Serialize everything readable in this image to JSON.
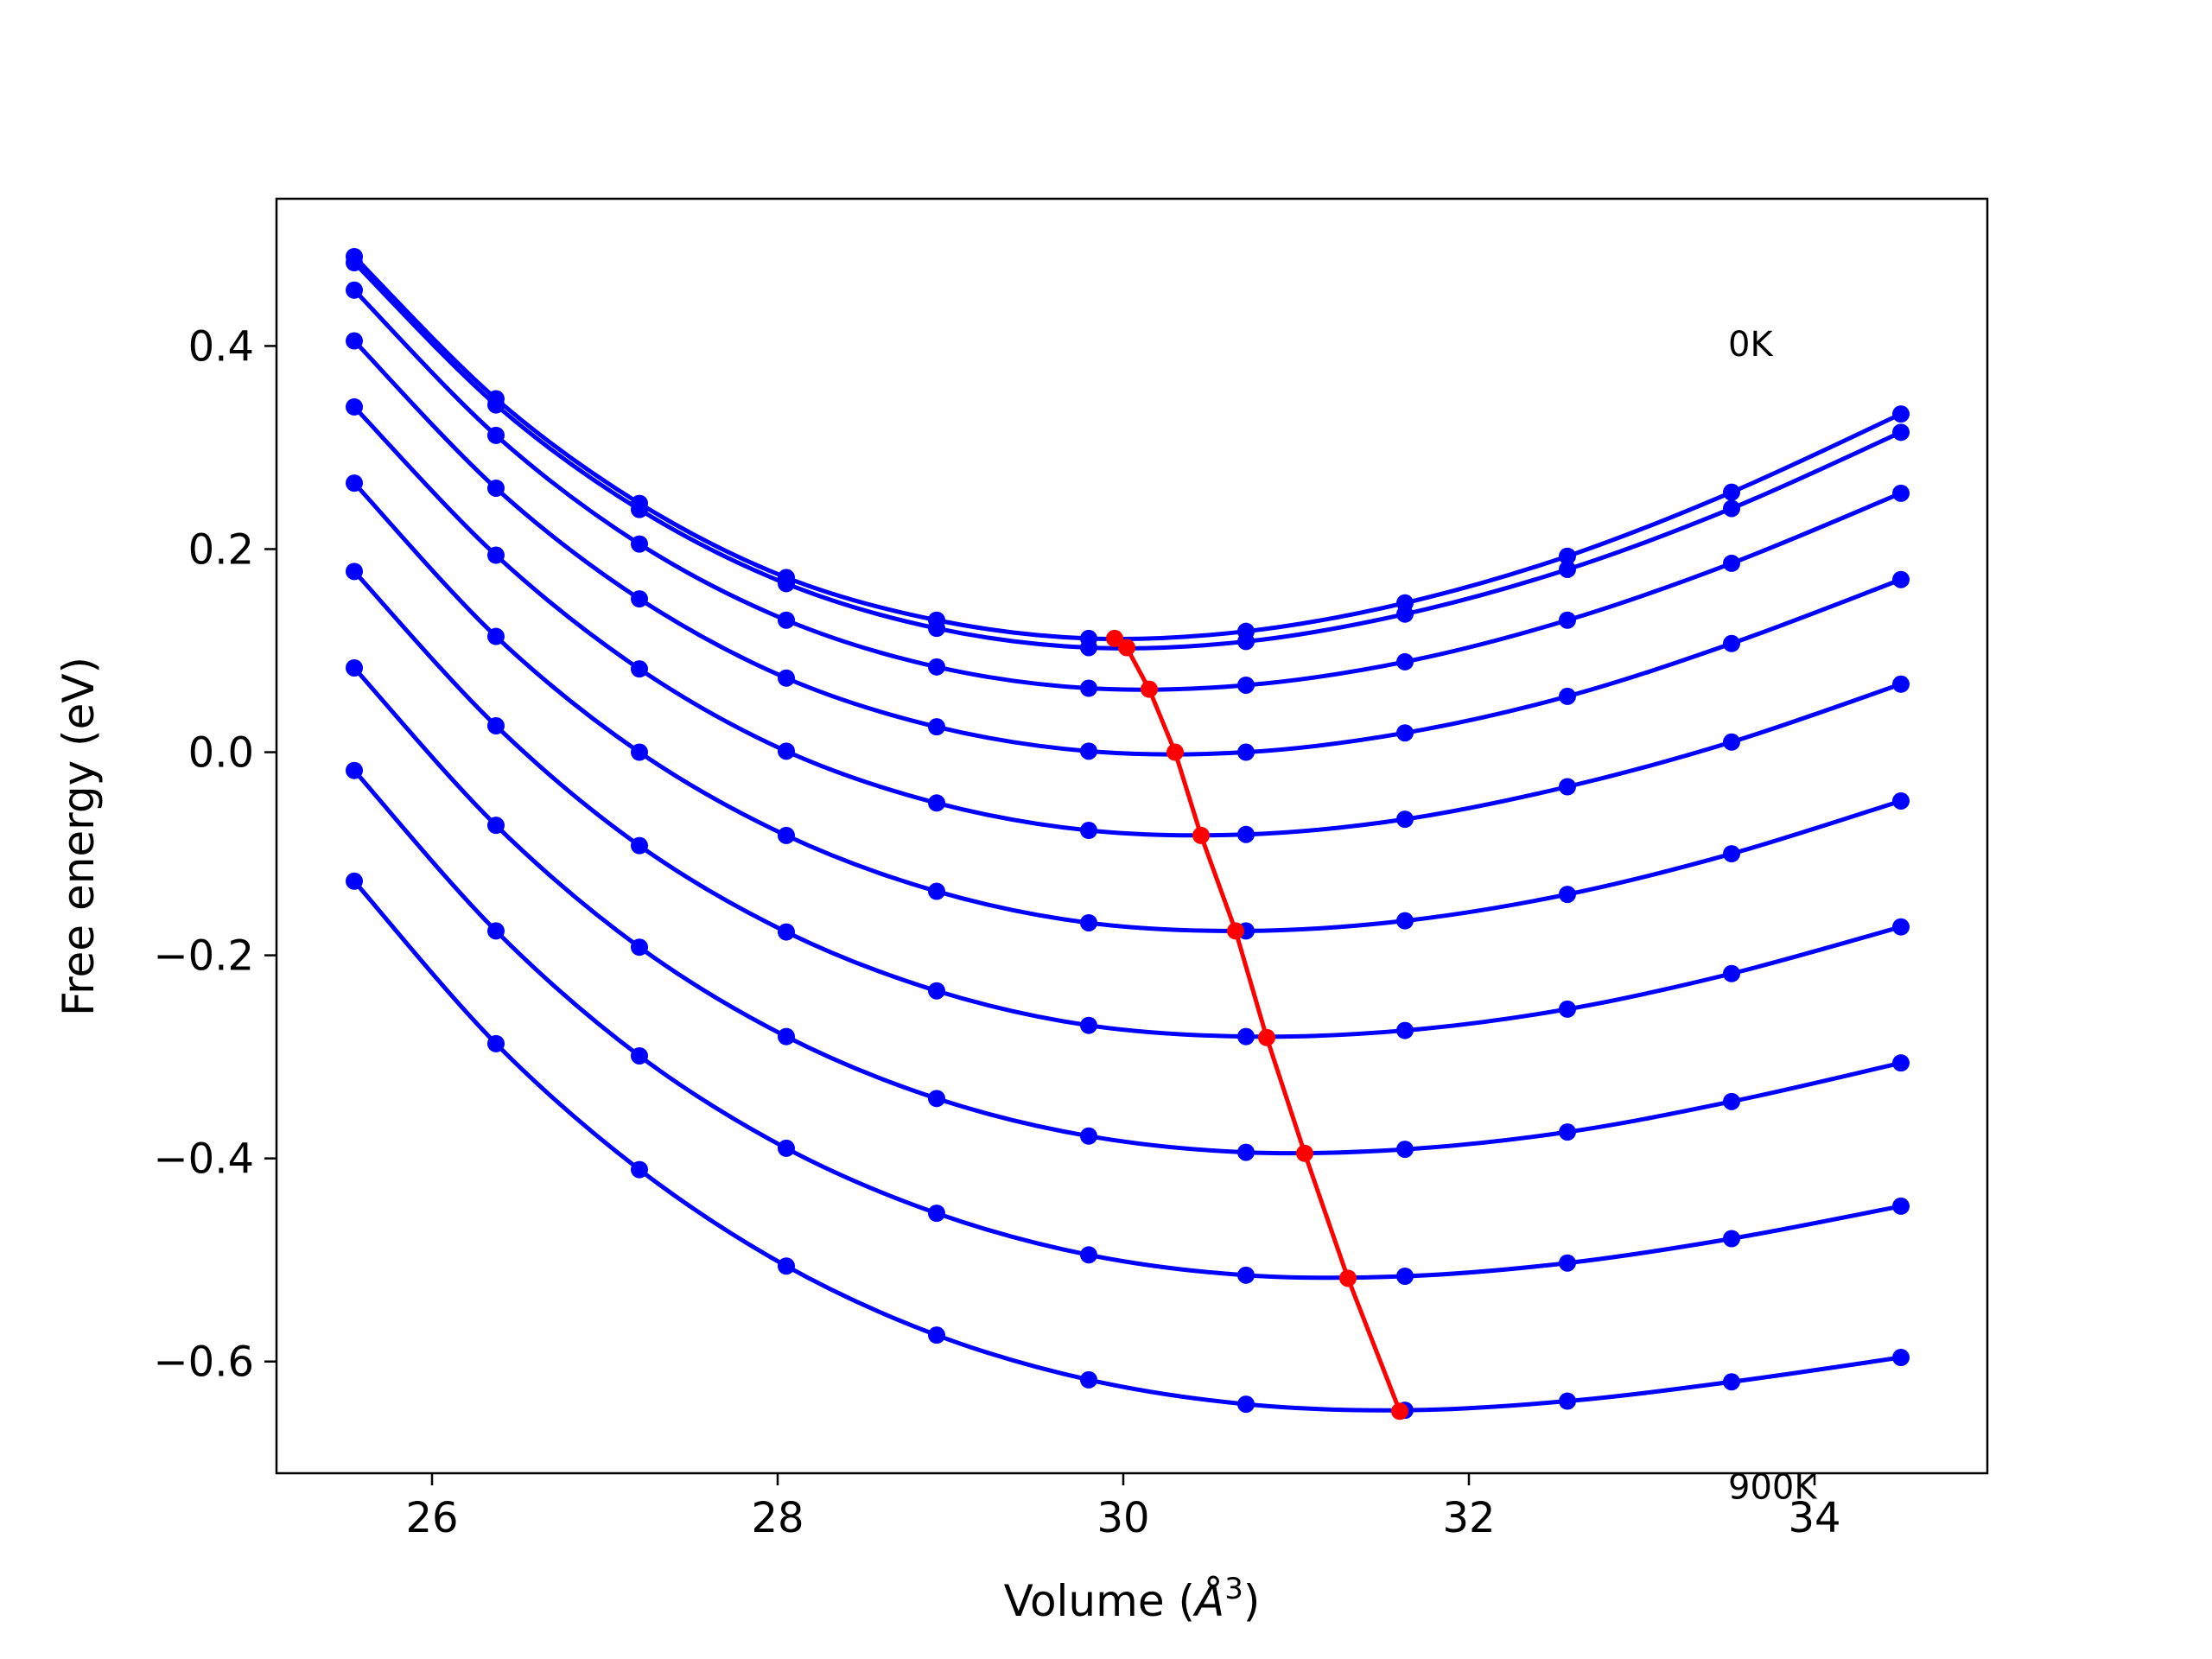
{
  "chart_data": {
    "type": "line",
    "title": "",
    "xlabel": "Volume (",
    "xlabel_unit_base": "Å",
    "xlabel_unit_exp": "3",
    "xlabel_close": ")",
    "ylabel": "Free energy (eV)",
    "xlim": [
      25.1,
      35.0
    ],
    "ylim": [
      -0.71,
      0.545
    ],
    "x_ticks": [
      26,
      28,
      30,
      32,
      34
    ],
    "x_tick_labels": [
      "26",
      "28",
      "30",
      "32",
      "34"
    ],
    "y_ticks": [
      0.4,
      0.2,
      0.0,
      -0.2,
      -0.4,
      -0.6
    ],
    "y_tick_labels": [
      "0.4",
      "0.2",
      "0.0",
      "−0.2",
      "−0.4",
      "−0.6"
    ],
    "grid": false,
    "annotations": [
      {
        "text": "0K",
        "x": 33.5,
        "y": 0.39
      },
      {
        "text": "900K",
        "x": 33.5,
        "y": -0.735
      }
    ],
    "volumes": [
      25.55,
      26.37,
      27.2,
      28.05,
      28.92,
      29.8,
      30.71,
      31.63,
      32.57,
      33.52,
      34.5
    ],
    "series": [
      {
        "color": "#0000ff",
        "values": [
          0.488,
          0.348,
          0.245,
          0.172,
          0.13,
          0.112,
          0.119,
          0.147,
          0.193,
          0.256,
          0.333
        ]
      },
      {
        "color": "#0000ff",
        "values": [
          0.482,
          0.342,
          0.239,
          0.166,
          0.122,
          0.103,
          0.109,
          0.136,
          0.18,
          0.24,
          0.315
        ]
      },
      {
        "color": "#0000ff",
        "values": [
          0.455,
          0.312,
          0.205,
          0.13,
          0.084,
          0.063,
          0.066,
          0.089,
          0.13,
          0.186,
          0.255
        ]
      },
      {
        "color": "#0000ff",
        "values": [
          0.405,
          0.26,
          0.151,
          0.073,
          0.025,
          0.001,
          0.0,
          0.019,
          0.055,
          0.107,
          0.17
        ]
      },
      {
        "color": "#0000ff",
        "values": [
          0.34,
          0.194,
          0.082,
          0.001,
          -0.05,
          -0.077,
          -0.081,
          -0.066,
          -0.034,
          0.01,
          0.067
        ]
      },
      {
        "color": "#0000ff",
        "values": [
          0.265,
          0.114,
          0.0,
          -0.082,
          -0.137,
          -0.168,
          -0.176,
          -0.166,
          -0.14,
          -0.1,
          -0.048
        ]
      },
      {
        "color": "#0000ff",
        "values": [
          0.178,
          0.026,
          -0.092,
          -0.177,
          -0.235,
          -0.269,
          -0.28,
          -0.274,
          -0.253,
          -0.218,
          -0.172
        ]
      },
      {
        "color": "#0000ff",
        "values": [
          0.083,
          -0.072,
          -0.192,
          -0.28,
          -0.341,
          -0.378,
          -0.394,
          -0.391,
          -0.374,
          -0.344,
          -0.306
        ]
      },
      {
        "color": "#0000ff",
        "values": [
          -0.018,
          -0.176,
          -0.299,
          -0.39,
          -0.454,
          -0.495,
          -0.515,
          -0.516,
          -0.503,
          -0.479,
          -0.447
        ]
      },
      {
        "color": "#0000ff",
        "values": [
          -0.127,
          -0.287,
          -0.411,
          -0.506,
          -0.574,
          -0.618,
          -0.642,
          -0.648,
          -0.639,
          -0.62,
          -0.596
        ]
      }
    ],
    "minima": {
      "color": "#ff0000",
      "x": [
        29.95,
        30.02,
        30.15,
        30.3,
        30.45,
        30.65,
        30.83,
        31.05,
        31.3,
        31.6
      ],
      "y": [
        0.112,
        0.103,
        0.062,
        0.0,
        -0.082,
        -0.176,
        -0.281,
        -0.395,
        -0.518,
        -0.649
      ]
    }
  }
}
